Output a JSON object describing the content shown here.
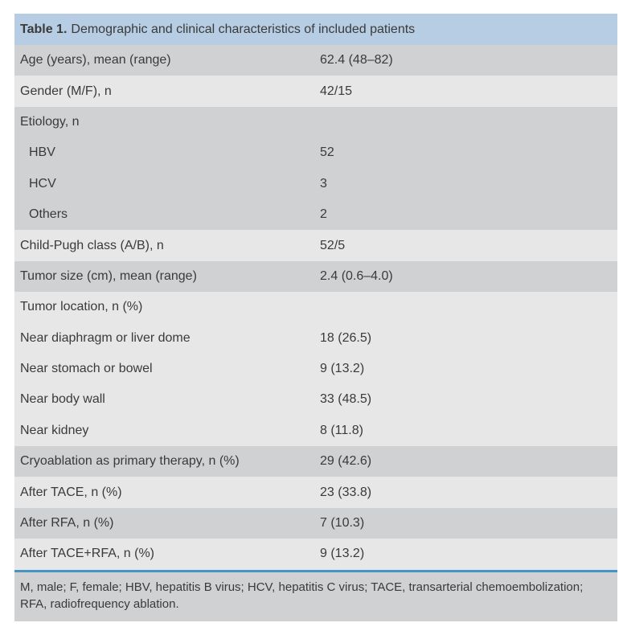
{
  "table": {
    "title_prefix": "Table 1.",
    "title_text": "Demographic and clinical characteristics of included patients",
    "rows": [
      {
        "label": "Age (years), mean (range)",
        "value": "62.4 (48–82)",
        "shade": "dark",
        "indent": false
      },
      {
        "label": "Gender (M/F), n",
        "value": "42/15",
        "shade": "light",
        "indent": false
      },
      {
        "label": "Etiology, n",
        "value": "",
        "shade": "dark",
        "indent": false
      },
      {
        "label": "HBV",
        "value": "52",
        "shade": "dark",
        "indent": true
      },
      {
        "label": "HCV",
        "value": "3",
        "shade": "dark",
        "indent": true
      },
      {
        "label": "Others",
        "value": "2",
        "shade": "dark",
        "indent": true
      },
      {
        "label": "Child-Pugh class (A/B), n",
        "value": "52/5",
        "shade": "light",
        "indent": false
      },
      {
        "label": "Tumor size (cm), mean (range)",
        "value": "2.4 (0.6–4.0)",
        "shade": "dark",
        "indent": false
      },
      {
        "label": "Tumor location, n (%)",
        "value": "",
        "shade": "light",
        "indent": false
      },
      {
        "label": "Near diaphragm or liver dome",
        "value": "18 (26.5)",
        "shade": "light",
        "indent": false
      },
      {
        "label": "Near stomach or bowel",
        "value": "9 (13.2)",
        "shade": "light",
        "indent": false
      },
      {
        "label": "Near body wall",
        "value": "33 (48.5)",
        "shade": "light",
        "indent": false
      },
      {
        "label": "Near kidney",
        "value": "8 (11.8)",
        "shade": "light",
        "indent": false
      },
      {
        "label": "Cryoablation as primary therapy, n (%)",
        "value": "29 (42.6)",
        "shade": "dark",
        "indent": false
      },
      {
        "label": "After TACE, n (%)",
        "value": "23 (33.8)",
        "shade": "light",
        "indent": false
      },
      {
        "label": "After RFA, n (%)",
        "value": "7 (10.3)",
        "shade": "dark",
        "indent": false
      },
      {
        "label": "After TACE+RFA, n (%)",
        "value": "9 (13.2)",
        "shade": "light",
        "indent": false
      }
    ],
    "footnote": "M, male; F, female; HBV, hepatitis B virus; HCV, hepatitis C virus; TACE, transarterial chemoembolization; RFA, radiofrequency ablation."
  },
  "colors": {
    "header_bg": "#b7cde4",
    "row_dark": "#d0d1d3",
    "row_light": "#e7e7e8",
    "footer_bg": "#d0d1d3",
    "rule_blue": "#4793c4",
    "text": "#3a3a3a"
  }
}
